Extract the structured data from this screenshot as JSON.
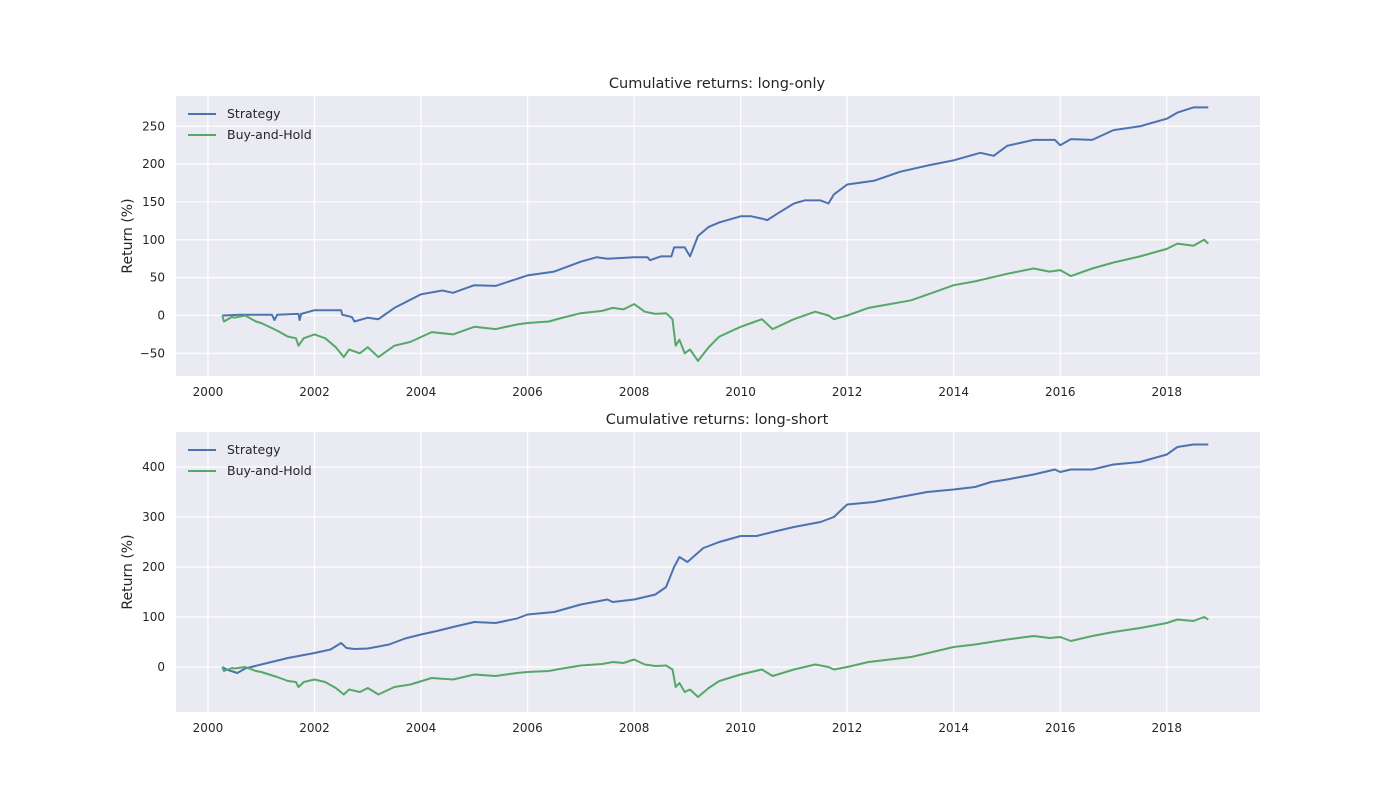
{
  "colors": {
    "panel_bg": "#EAEAF2",
    "grid": "#FFFFFF",
    "strategy": "#4C72B0",
    "buy_and_hold": "#55A868"
  },
  "chart_data": [
    {
      "type": "line",
      "title": "Cumulative returns: long-only",
      "xlabel": "",
      "ylabel": "Return (%)",
      "xlim": [
        1999.4,
        2019.75
      ],
      "ylim": [
        -80,
        290
      ],
      "xticks": [
        2000,
        2002,
        2004,
        2006,
        2008,
        2010,
        2012,
        2014,
        2016,
        2018
      ],
      "yticks": [
        -50,
        0,
        50,
        100,
        150,
        200,
        250
      ],
      "ytick_labels": [
        "−50",
        "0",
        "50",
        "100",
        "150",
        "200",
        "250"
      ],
      "grid": true,
      "legend_position": "upper-left",
      "series": [
        {
          "name": "Strategy",
          "color": "#4C72B0",
          "x": [
            2000.27,
            2000.3,
            2000.6,
            2001.0,
            2001.2,
            2001.25,
            2001.3,
            2001.7,
            2001.72,
            2001.75,
            2002.0,
            2002.5,
            2002.52,
            2002.7,
            2002.75,
            2003.0,
            2003.2,
            2003.5,
            2004.0,
            2004.4,
            2004.6,
            2005.0,
            2005.4,
            2006.0,
            2006.5,
            2007.0,
            2007.3,
            2007.5,
            2008.0,
            2008.25,
            2008.3,
            2008.5,
            2008.7,
            2008.75,
            2008.95,
            2009.05,
            2009.2,
            2009.4,
            2009.6,
            2010.0,
            2010.2,
            2010.4,
            2010.5,
            2010.7,
            2011.0,
            2011.2,
            2011.5,
            2011.65,
            2011.75,
            2012.0,
            2012.5,
            2013.0,
            2013.5,
            2014.0,
            2014.5,
            2014.75,
            2015.0,
            2015.5,
            2015.9,
            2016.0,
            2016.2,
            2016.6,
            2017.0,
            2017.5,
            2018.0,
            2018.2,
            2018.5,
            2018.78
          ],
          "y": [
            0,
            0,
            1,
            1,
            1,
            -6,
            1,
            2,
            -6,
            2,
            7,
            7,
            1,
            -2,
            -8,
            -3,
            -5,
            10,
            28,
            33,
            30,
            40,
            39,
            53,
            58,
            71,
            77,
            75,
            77,
            77,
            73,
            78,
            78,
            90,
            90,
            78,
            105,
            117,
            123,
            131,
            131,
            128,
            126,
            135,
            148,
            152,
            152,
            148,
            160,
            173,
            178,
            190,
            198,
            205,
            215,
            211,
            224,
            232,
            232,
            225,
            233,
            232,
            245,
            250,
            260,
            268,
            275,
            275
          ]
        },
        {
          "name": "Buy-and-Hold",
          "color": "#55A868",
          "x": [
            2000.27,
            2000.3,
            2000.45,
            2000.5,
            2000.7,
            2000.9,
            2001.0,
            2001.3,
            2001.5,
            2001.65,
            2001.7,
            2001.8,
            2002.0,
            2002.2,
            2002.4,
            2002.55,
            2002.65,
            2002.85,
            2003.0,
            2003.2,
            2003.3,
            2003.5,
            2003.8,
            2004.2,
            2004.6,
            2005.0,
            2005.4,
            2005.8,
            2006.0,
            2006.4,
            2006.6,
            2007.0,
            2007.4,
            2007.6,
            2007.8,
            2008.0,
            2008.2,
            2008.4,
            2008.6,
            2008.72,
            2008.78,
            2008.85,
            2008.95,
            2009.05,
            2009.2,
            2009.4,
            2009.6,
            2010.0,
            2010.2,
            2010.4,
            2010.6,
            2011.0,
            2011.4,
            2011.65,
            2011.75,
            2012.0,
            2012.4,
            2012.8,
            2013.2,
            2013.6,
            2014.0,
            2014.4,
            2015.0,
            2015.5,
            2015.8,
            2016.0,
            2016.2,
            2016.6,
            2017.0,
            2017.5,
            2018.0,
            2018.2,
            2018.5,
            2018.7,
            2018.78
          ],
          "y": [
            0,
            -8,
            -2,
            -3,
            0,
            -8,
            -10,
            -20,
            -28,
            -30,
            -40,
            -30,
            -25,
            -30,
            -42,
            -55,
            -45,
            -50,
            -42,
            -55,
            -50,
            -40,
            -35,
            -22,
            -25,
            -15,
            -18,
            -12,
            -10,
            -8,
            -4,
            3,
            6,
            10,
            8,
            15,
            5,
            2,
            3,
            -5,
            -40,
            -32,
            -50,
            -45,
            -60,
            -42,
            -28,
            -15,
            -10,
            -5,
            -18,
            -5,
            5,
            0,
            -5,
            0,
            10,
            15,
            20,
            30,
            40,
            45,
            55,
            62,
            58,
            60,
            52,
            62,
            70,
            78,
            88,
            95,
            92,
            100,
            95
          ]
        }
      ]
    },
    {
      "type": "line",
      "title": "Cumulative returns: long-short",
      "xlabel": "",
      "ylabel": "Return (%)",
      "xlim": [
        1999.4,
        2019.75
      ],
      "ylim": [
        -90,
        470
      ],
      "xticks": [
        2000,
        2002,
        2004,
        2006,
        2008,
        2010,
        2012,
        2014,
        2016,
        2018
      ],
      "yticks": [
        0,
        100,
        200,
        300,
        400
      ],
      "ytick_labels": [
        "0",
        "100",
        "200",
        "300",
        "400"
      ],
      "grid": true,
      "legend_position": "upper-left",
      "series": [
        {
          "name": "Strategy",
          "color": "#4C72B0",
          "x": [
            2000.27,
            2000.35,
            2000.55,
            2000.7,
            2001.0,
            2001.5,
            2002.0,
            2002.3,
            2002.5,
            2002.6,
            2002.75,
            2003.0,
            2003.4,
            2003.7,
            2004.0,
            2004.3,
            2004.6,
            2005.0,
            2005.4,
            2005.8,
            2006.0,
            2006.5,
            2007.0,
            2007.5,
            2007.6,
            2008.0,
            2008.2,
            2008.4,
            2008.6,
            2008.75,
            2008.85,
            2009.0,
            2009.3,
            2009.6,
            2010.0,
            2010.3,
            2010.6,
            2011.0,
            2011.5,
            2011.75,
            2011.9,
            2012.0,
            2012.5,
            2013.0,
            2013.5,
            2014.0,
            2014.4,
            2014.7,
            2015.0,
            2015.5,
            2015.9,
            2016.0,
            2016.2,
            2016.6,
            2017.0,
            2017.5,
            2018.0,
            2018.2,
            2018.5,
            2018.78
          ],
          "y": [
            0,
            -5,
            -12,
            -3,
            5,
            18,
            28,
            35,
            48,
            38,
            36,
            37,
            45,
            57,
            65,
            72,
            80,
            90,
            88,
            97,
            105,
            110,
            125,
            135,
            130,
            135,
            140,
            145,
            160,
            200,
            220,
            210,
            238,
            250,
            262,
            262,
            270,
            280,
            290,
            300,
            315,
            325,
            330,
            340,
            350,
            355,
            360,
            370,
            375,
            385,
            395,
            390,
            395,
            395,
            405,
            410,
            425,
            440,
            445,
            445
          ]
        },
        {
          "name": "Buy-and-Hold",
          "color": "#55A868",
          "x": [
            2000.27,
            2000.3,
            2000.45,
            2000.5,
            2000.7,
            2000.9,
            2001.0,
            2001.3,
            2001.5,
            2001.65,
            2001.7,
            2001.8,
            2002.0,
            2002.2,
            2002.4,
            2002.55,
            2002.65,
            2002.85,
            2003.0,
            2003.2,
            2003.3,
            2003.5,
            2003.8,
            2004.2,
            2004.6,
            2005.0,
            2005.4,
            2005.8,
            2006.0,
            2006.4,
            2006.6,
            2007.0,
            2007.4,
            2007.6,
            2007.8,
            2008.0,
            2008.2,
            2008.4,
            2008.6,
            2008.72,
            2008.78,
            2008.85,
            2008.95,
            2009.05,
            2009.2,
            2009.4,
            2009.6,
            2010.0,
            2010.2,
            2010.4,
            2010.6,
            2011.0,
            2011.4,
            2011.65,
            2011.75,
            2012.0,
            2012.4,
            2012.8,
            2013.2,
            2013.6,
            2014.0,
            2014.4,
            2015.0,
            2015.5,
            2015.8,
            2016.0,
            2016.2,
            2016.6,
            2017.0,
            2017.5,
            2018.0,
            2018.2,
            2018.5,
            2018.7,
            2018.78
          ],
          "y": [
            0,
            -8,
            -2,
            -3,
            0,
            -8,
            -10,
            -20,
            -28,
            -30,
            -40,
            -30,
            -25,
            -30,
            -42,
            -55,
            -45,
            -50,
            -42,
            -55,
            -50,
            -40,
            -35,
            -22,
            -25,
            -15,
            -18,
            -12,
            -10,
            -8,
            -4,
            3,
            6,
            10,
            8,
            15,
            5,
            2,
            3,
            -5,
            -40,
            -32,
            -50,
            -45,
            -60,
            -42,
            -28,
            -15,
            -10,
            -5,
            -18,
            -5,
            5,
            0,
            -5,
            0,
            10,
            15,
            20,
            30,
            40,
            45,
            55,
            62,
            58,
            60,
            52,
            62,
            70,
            78,
            88,
            95,
            92,
            100,
            95
          ]
        }
      ]
    }
  ]
}
